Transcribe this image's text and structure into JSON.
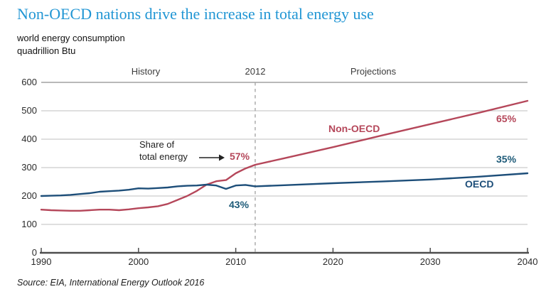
{
  "title": "Non-OECD nations drive the increase in total energy use",
  "subtitle_line1": "world energy consumption",
  "subtitle_line2": "quadrillion Btu",
  "source": "Source:  EIA, International Energy Outlook 2016",
  "colors": {
    "title": "#2196d4",
    "nonoecd": "#b5475a",
    "oecd": "#1d4e79",
    "share_oecd_text": "#1d5a78",
    "header_text": "#3c3c3c",
    "grid": "#cccccc",
    "grid_top": "#8f8f8f",
    "axis": "#4d4d4d",
    "divider": "#a6a6a6"
  },
  "chart_data": {
    "type": "line",
    "title": "Non-OECD nations drive the increase in total energy use",
    "xlabel": "",
    "ylabel": "quadrillion Btu",
    "xlim": [
      1990,
      2040
    ],
    "ylim": [
      0,
      600
    ],
    "yticks": [
      0,
      100,
      200,
      300,
      400,
      500,
      600
    ],
    "xticks": [
      1990,
      2000,
      2010,
      2020,
      2030,
      2040
    ],
    "history_end": 2012,
    "grid": true,
    "legend_position": "inline-labels",
    "series": [
      {
        "name": "Non-OECD",
        "color": "#b5475a",
        "x": [
          1990,
          1991,
          1992,
          1993,
          1994,
          1995,
          1996,
          1997,
          1998,
          1999,
          2000,
          2001,
          2002,
          2003,
          2004,
          2005,
          2006,
          2007,
          2008,
          2009,
          2010,
          2011,
          2012,
          2015,
          2020,
          2025,
          2030,
          2035,
          2040
        ],
        "values": [
          152,
          150,
          149,
          148,
          148,
          150,
          152,
          152,
          150,
          153,
          157,
          160,
          164,
          172,
          186,
          200,
          218,
          240,
          252,
          256,
          280,
          297,
          310,
          333,
          372,
          413,
          453,
          493,
          535
        ]
      },
      {
        "name": "OECD",
        "color": "#1d4e79",
        "x": [
          1990,
          1991,
          1992,
          1993,
          1994,
          1995,
          1996,
          1997,
          1998,
          1999,
          2000,
          2001,
          2002,
          2003,
          2004,
          2005,
          2006,
          2007,
          2008,
          2009,
          2010,
          2011,
          2012,
          2015,
          2020,
          2025,
          2030,
          2035,
          2040
        ],
        "values": [
          200,
          201,
          202,
          204,
          207,
          210,
          215,
          217,
          219,
          222,
          227,
          226,
          228,
          230,
          234,
          236,
          237,
          240,
          237,
          225,
          237,
          239,
          234,
          238,
          245,
          251,
          258,
          268,
          280
        ]
      }
    ],
    "annotations": {
      "history_label": "History",
      "divider_label": "2012",
      "projections_label": "Projections",
      "share_label_line1": "Share of",
      "share_label_line2": "total energy",
      "share_2012_nonoecd": "57%",
      "share_2012_oecd": "43%",
      "share_2040_nonoecd": "65%",
      "share_2040_oecd": "35%",
      "series_label_nonoecd": "Non-OECD",
      "series_label_oecd": "OECD"
    }
  }
}
